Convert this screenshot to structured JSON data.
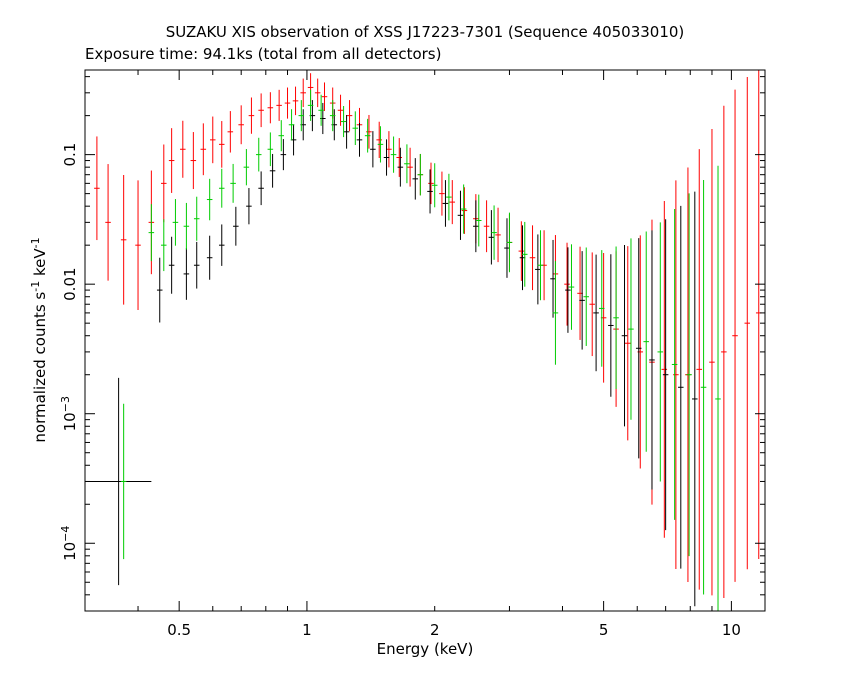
{
  "chart_data": {
    "type": "scatter",
    "title": "SUZAKU XIS observation of XSS J17223-7301 (Sequence 405033010)",
    "subtitle": "Exposure time: 94.1ks (total from all detectors)",
    "xlabel": "Energy (keV)",
    "ylabel_main": "normalized counts s",
    "ylabel_exp1": "-1",
    "ylabel_mid": " keV",
    "ylabel_exp2": "-1",
    "x_scale": "log",
    "y_scale": "log",
    "xlim": [
      0.3,
      12
    ],
    "ylim": [
      3e-05,
      0.45
    ],
    "grid": false,
    "x_ticks": [
      {
        "value": 0.5,
        "label": "0.5"
      },
      {
        "value": 1,
        "label": "1"
      },
      {
        "value": 2,
        "label": "2"
      },
      {
        "value": 5,
        "label": "5"
      },
      {
        "value": 10,
        "label": "10"
      }
    ],
    "y_ticks": [
      {
        "value": 0.1,
        "mant": "0.1",
        "exp": ""
      },
      {
        "value": 0.01,
        "mant": "0.01",
        "exp": ""
      },
      {
        "value": 0.001,
        "mant": "10",
        "exp": "−3"
      },
      {
        "value": 0.0001,
        "mant": "10",
        "exp": "−4"
      }
    ],
    "series": [
      {
        "color": "#ff0000",
        "points": [
          {
            "x": 0.32,
            "y": 0.055,
            "yerr": 0.4
          },
          {
            "x": 0.34,
            "y": 0.03,
            "yerr": 0.45
          },
          {
            "x": 0.37,
            "y": 0.022,
            "yerr": 0.5
          },
          {
            "x": 0.4,
            "y": 0.02,
            "yerr": 0.5
          },
          {
            "x": 0.43,
            "y": 0.03,
            "yerr": 0.4
          },
          {
            "x": 0.46,
            "y": 0.06,
            "yerr": 0.3
          },
          {
            "x": 0.48,
            "y": 0.09,
            "yerr": 0.25
          },
          {
            "x": 0.51,
            "y": 0.11,
            "yerr": 0.22
          },
          {
            "x": 0.54,
            "y": 0.09,
            "yerr": 0.22
          },
          {
            "x": 0.57,
            "y": 0.11,
            "yerr": 0.2
          },
          {
            "x": 0.6,
            "y": 0.13,
            "yerr": 0.18
          },
          {
            "x": 0.63,
            "y": 0.12,
            "yerr": 0.18
          },
          {
            "x": 0.66,
            "y": 0.15,
            "yerr": 0.16
          },
          {
            "x": 0.7,
            "y": 0.17,
            "yerr": 0.15
          },
          {
            "x": 0.74,
            "y": 0.2,
            "yerr": 0.14
          },
          {
            "x": 0.78,
            "y": 0.22,
            "yerr": 0.13
          },
          {
            "x": 0.82,
            "y": 0.23,
            "yerr": 0.12
          },
          {
            "x": 0.86,
            "y": 0.24,
            "yerr": 0.12
          },
          {
            "x": 0.9,
            "y": 0.25,
            "yerr": 0.12
          },
          {
            "x": 0.94,
            "y": 0.26,
            "yerr": 0.11
          },
          {
            "x": 0.98,
            "y": 0.3,
            "yerr": 0.11
          },
          {
            "x": 1.02,
            "y": 0.33,
            "yerr": 0.11
          },
          {
            "x": 1.06,
            "y": 0.3,
            "yerr": 0.11
          },
          {
            "x": 1.1,
            "y": 0.28,
            "yerr": 0.11
          },
          {
            "x": 1.15,
            "y": 0.25,
            "yerr": 0.12
          },
          {
            "x": 1.2,
            "y": 0.22,
            "yerr": 0.12
          },
          {
            "x": 1.26,
            "y": 0.2,
            "yerr": 0.12
          },
          {
            "x": 1.33,
            "y": 0.17,
            "yerr": 0.13
          },
          {
            "x": 1.4,
            "y": 0.15,
            "yerr": 0.13
          },
          {
            "x": 1.48,
            "y": 0.13,
            "yerr": 0.14
          },
          {
            "x": 1.56,
            "y": 0.11,
            "yerr": 0.14
          },
          {
            "x": 1.65,
            "y": 0.095,
            "yerr": 0.15
          },
          {
            "x": 1.75,
            "y": 0.08,
            "yerr": 0.15
          },
          {
            "x": 1.85,
            "y": 0.07,
            "yerr": 0.16
          },
          {
            "x": 1.96,
            "y": 0.06,
            "yerr": 0.16
          },
          {
            "x": 2.08,
            "y": 0.05,
            "yerr": 0.17
          },
          {
            "x": 2.2,
            "y": 0.043,
            "yerr": 0.17
          },
          {
            "x": 2.35,
            "y": 0.037,
            "yerr": 0.18
          },
          {
            "x": 2.5,
            "y": 0.032,
            "yerr": 0.19
          },
          {
            "x": 2.65,
            "y": 0.028,
            "yerr": 0.2
          },
          {
            "x": 2.82,
            "y": 0.024,
            "yerr": 0.21
          },
          {
            "x": 3.0,
            "y": 0.021,
            "yerr": 0.22
          },
          {
            "x": 3.2,
            "y": 0.018,
            "yerr": 0.23
          },
          {
            "x": 3.4,
            "y": 0.016,
            "yerr": 0.25
          },
          {
            "x": 3.62,
            "y": 0.014,
            "yerr": 0.27
          },
          {
            "x": 3.85,
            "y": 0.012,
            "yerr": 0.3
          },
          {
            "x": 4.1,
            "y": 0.01,
            "yerr": 0.32
          },
          {
            "x": 4.4,
            "y": 0.0085,
            "yerr": 0.36
          },
          {
            "x": 4.7,
            "y": 0.007,
            "yerr": 0.4
          },
          {
            "x": 5.0,
            "y": 0.0055,
            "yerr": 0.5
          },
          {
            "x": 5.35,
            "y": 0.0045,
            "yerr": 0.6
          },
          {
            "x": 5.7,
            "y": 0.0035,
            "yerr": 0.75
          },
          {
            "x": 6.1,
            "y": 0.003,
            "yerr": 0.9
          },
          {
            "x": 6.5,
            "y": 0.0025,
            "yerr": 1.1
          },
          {
            "x": 6.95,
            "y": 0.0022,
            "yerr": 1.3
          },
          {
            "x": 7.4,
            "y": 0.002,
            "yerr": 1.5
          },
          {
            "x": 7.9,
            "y": 0.002,
            "yerr": 1.6
          },
          {
            "x": 8.4,
            "y": 0.0022,
            "yerr": 1.7
          },
          {
            "x": 9.0,
            "y": 0.0025,
            "yerr": 1.8
          },
          {
            "x": 9.6,
            "y": 0.003,
            "yerr": 1.9
          },
          {
            "x": 10.2,
            "y": 0.004,
            "yerr": 1.9
          },
          {
            "x": 10.9,
            "y": 0.005,
            "yerr": 1.9
          },
          {
            "x": 11.6,
            "y": 0.006,
            "yerr": 1.9
          }
        ]
      },
      {
        "color": "#000000",
        "points": [
          {
            "x": 0.36,
            "y": 0.0003,
            "yerr": 0.8,
            "xlo": 0.3,
            "xhi": 0.43
          },
          {
            "x": 0.45,
            "y": 0.009,
            "yerr": 0.25
          },
          {
            "x": 0.48,
            "y": 0.014,
            "yerr": 0.22
          },
          {
            "x": 0.52,
            "y": 0.012,
            "yerr": 0.2
          },
          {
            "x": 0.55,
            "y": 0.014,
            "yerr": 0.18
          },
          {
            "x": 0.59,
            "y": 0.016,
            "yerr": 0.17
          },
          {
            "x": 0.63,
            "y": 0.02,
            "yerr": 0.16
          },
          {
            "x": 0.68,
            "y": 0.028,
            "yerr": 0.15
          },
          {
            "x": 0.73,
            "y": 0.04,
            "yerr": 0.14
          },
          {
            "x": 0.78,
            "y": 0.055,
            "yerr": 0.13
          },
          {
            "x": 0.83,
            "y": 0.075,
            "yerr": 0.13
          },
          {
            "x": 0.88,
            "y": 0.1,
            "yerr": 0.12
          },
          {
            "x": 0.93,
            "y": 0.13,
            "yerr": 0.12
          },
          {
            "x": 0.98,
            "y": 0.17,
            "yerr": 0.12
          },
          {
            "x": 1.03,
            "y": 0.2,
            "yerr": 0.12
          },
          {
            "x": 1.09,
            "y": 0.19,
            "yerr": 0.12
          },
          {
            "x": 1.16,
            "y": 0.17,
            "yerr": 0.12
          },
          {
            "x": 1.24,
            "y": 0.15,
            "yerr": 0.13
          },
          {
            "x": 1.33,
            "y": 0.13,
            "yerr": 0.13
          },
          {
            "x": 1.43,
            "y": 0.11,
            "yerr": 0.14
          },
          {
            "x": 1.54,
            "y": 0.095,
            "yerr": 0.14
          },
          {
            "x": 1.66,
            "y": 0.08,
            "yerr": 0.15
          },
          {
            "x": 1.8,
            "y": 0.065,
            "yerr": 0.16
          },
          {
            "x": 1.95,
            "y": 0.052,
            "yerr": 0.17
          },
          {
            "x": 2.12,
            "y": 0.042,
            "yerr": 0.18
          },
          {
            "x": 2.3,
            "y": 0.034,
            "yerr": 0.19
          },
          {
            "x": 2.5,
            "y": 0.028,
            "yerr": 0.2
          },
          {
            "x": 2.72,
            "y": 0.023,
            "yerr": 0.21
          },
          {
            "x": 2.96,
            "y": 0.019,
            "yerr": 0.23
          },
          {
            "x": 3.22,
            "y": 0.016,
            "yerr": 0.25
          },
          {
            "x": 3.5,
            "y": 0.013,
            "yerr": 0.27
          },
          {
            "x": 3.8,
            "y": 0.011,
            "yerr": 0.3
          },
          {
            "x": 4.12,
            "y": 0.009,
            "yerr": 0.33
          },
          {
            "x": 4.45,
            "y": 0.0075,
            "yerr": 0.38
          },
          {
            "x": 4.8,
            "y": 0.006,
            "yerr": 0.45
          },
          {
            "x": 5.2,
            "y": 0.0048,
            "yerr": 0.55
          },
          {
            "x": 5.6,
            "y": 0.004,
            "yerr": 0.7
          },
          {
            "x": 6.05,
            "y": 0.0032,
            "yerr": 0.85
          },
          {
            "x": 6.5,
            "y": 0.0026,
            "yerr": 1.0
          },
          {
            "x": 7.0,
            "y": 0.002,
            "yerr": 1.2
          },
          {
            "x": 7.6,
            "y": 0.0016,
            "yerr": 1.4
          },
          {
            "x": 8.2,
            "y": 0.0013,
            "yerr": 1.6
          }
        ]
      },
      {
        "color": "#00cc00",
        "points": [
          {
            "x": 0.37,
            "y": 0.0003,
            "yerr": 0.6
          },
          {
            "x": 0.43,
            "y": 0.025,
            "yerr": 0.22
          },
          {
            "x": 0.46,
            "y": 0.02,
            "yerr": 0.2
          },
          {
            "x": 0.49,
            "y": 0.03,
            "yerr": 0.18
          },
          {
            "x": 0.52,
            "y": 0.028,
            "yerr": 0.18
          },
          {
            "x": 0.55,
            "y": 0.032,
            "yerr": 0.17
          },
          {
            "x": 0.59,
            "y": 0.045,
            "yerr": 0.16
          },
          {
            "x": 0.63,
            "y": 0.055,
            "yerr": 0.15
          },
          {
            "x": 0.67,
            "y": 0.06,
            "yerr": 0.15
          },
          {
            "x": 0.72,
            "y": 0.08,
            "yerr": 0.14
          },
          {
            "x": 0.77,
            "y": 0.1,
            "yerr": 0.13
          },
          {
            "x": 0.82,
            "y": 0.11,
            "yerr": 0.13
          },
          {
            "x": 0.87,
            "y": 0.14,
            "yerr": 0.12
          },
          {
            "x": 0.92,
            "y": 0.17,
            "yerr": 0.12
          },
          {
            "x": 0.97,
            "y": 0.2,
            "yerr": 0.12
          },
          {
            "x": 1.02,
            "y": 0.24,
            "yerr": 0.12
          },
          {
            "x": 1.08,
            "y": 0.22,
            "yerr": 0.12
          },
          {
            "x": 1.15,
            "y": 0.2,
            "yerr": 0.12
          },
          {
            "x": 1.22,
            "y": 0.18,
            "yerr": 0.12
          },
          {
            "x": 1.3,
            "y": 0.16,
            "yerr": 0.13
          },
          {
            "x": 1.39,
            "y": 0.14,
            "yerr": 0.13
          },
          {
            "x": 1.49,
            "y": 0.12,
            "yerr": 0.14
          },
          {
            "x": 1.6,
            "y": 0.1,
            "yerr": 0.14
          },
          {
            "x": 1.72,
            "y": 0.085,
            "yerr": 0.15
          },
          {
            "x": 1.85,
            "y": 0.07,
            "yerr": 0.16
          },
          {
            "x": 2.0,
            "y": 0.058,
            "yerr": 0.17
          },
          {
            "x": 2.16,
            "y": 0.047,
            "yerr": 0.18
          },
          {
            "x": 2.34,
            "y": 0.038,
            "yerr": 0.19
          },
          {
            "x": 2.54,
            "y": 0.031,
            "yerr": 0.2
          },
          {
            "x": 2.76,
            "y": 0.025,
            "yerr": 0.21
          },
          {
            "x": 3.0,
            "y": 0.021,
            "yerr": 0.23
          },
          {
            "x": 3.26,
            "y": 0.017,
            "yerr": 0.25
          },
          {
            "x": 3.55,
            "y": 0.014,
            "yerr": 0.27
          },
          {
            "x": 3.85,
            "y": 0.006,
            "yerr": 0.4
          },
          {
            "x": 4.2,
            "y": 0.0095,
            "yerr": 0.33
          },
          {
            "x": 4.55,
            "y": 0.008,
            "yerr": 0.38
          },
          {
            "x": 4.95,
            "y": 0.0065,
            "yerr": 0.45
          },
          {
            "x": 5.35,
            "y": 0.0055,
            "yerr": 0.55
          },
          {
            "x": 5.8,
            "y": 0.0045,
            "yerr": 0.7
          },
          {
            "x": 6.3,
            "y": 0.0036,
            "yerr": 0.85
          },
          {
            "x": 6.8,
            "y": 0.003,
            "yerr": 1.0
          },
          {
            "x": 7.35,
            "y": 0.0024,
            "yerr": 1.2
          },
          {
            "x": 7.95,
            "y": 0.002,
            "yerr": 1.4
          },
          {
            "x": 8.6,
            "y": 0.0016,
            "yerr": 1.6
          },
          {
            "x": 9.3,
            "y": 0.0013,
            "yerr": 1.8
          }
        ]
      }
    ]
  }
}
